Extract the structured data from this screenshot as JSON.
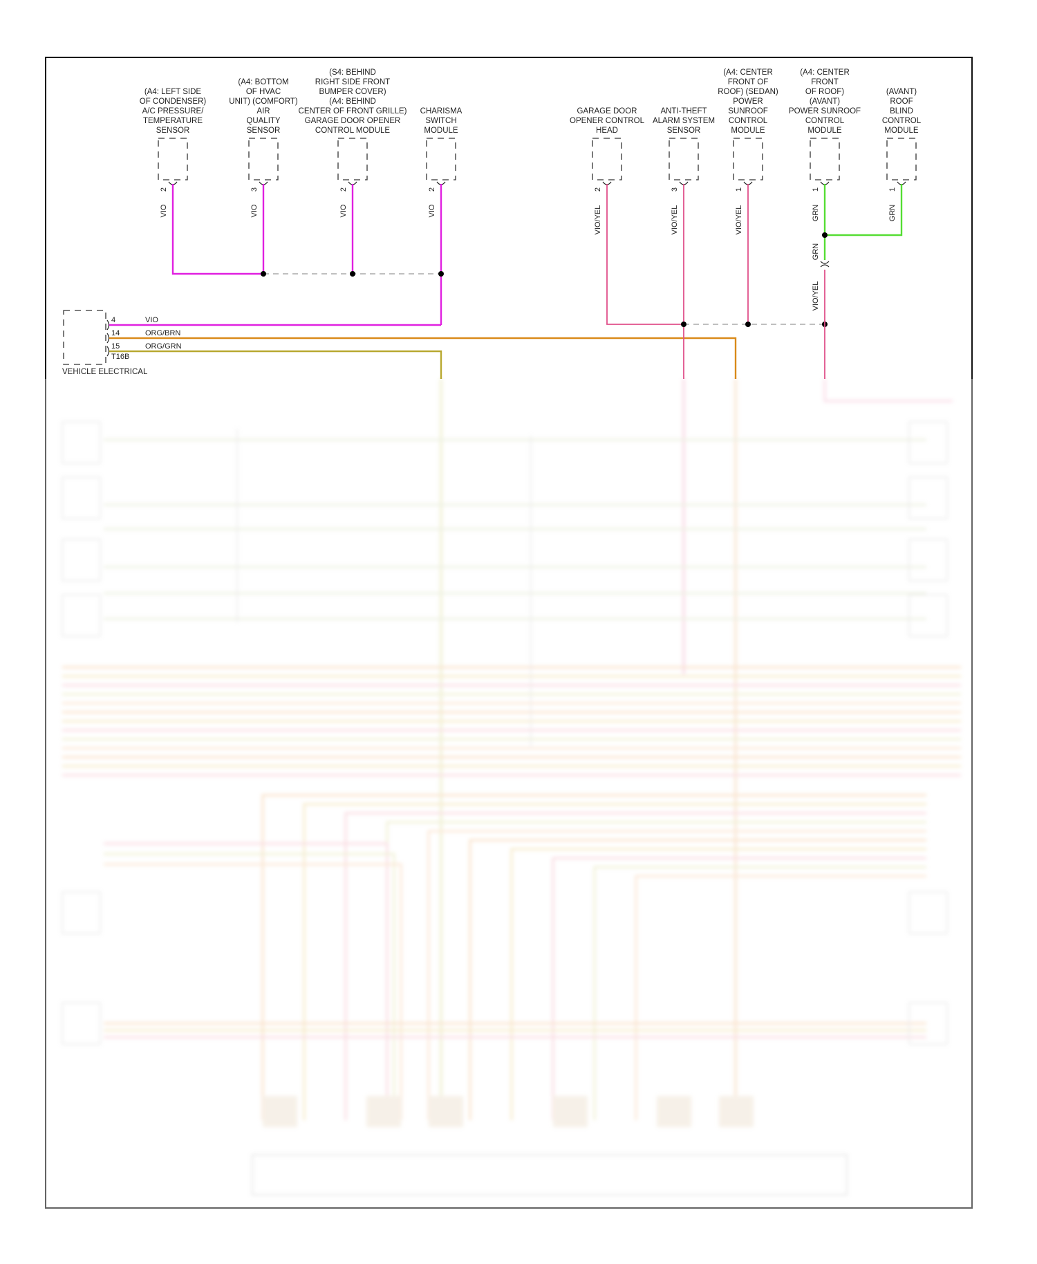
{
  "colors": {
    "vio": "#e020e0",
    "vio_yel": "#e0508a",
    "org_brn": "#d98a1a",
    "org_grn": "#b8a830",
    "grn": "#55dd33",
    "frame": "#111111"
  },
  "modules": [
    {
      "id": "ac-pressure-sensor",
      "lines": [
        "(A4: LEFT SIDE",
        "OF CONDENSER)",
        "A/C PRESSURE/",
        "TEMPERATURE",
        "SENSOR"
      ],
      "pin": "2",
      "wire": "VIO"
    },
    {
      "id": "air-quality-sensor",
      "lines": [
        "(A4: BOTTOM",
        "OF HVAC",
        "UNIT) (COMFORT)",
        "AIR",
        "QUALITY",
        "SENSOR"
      ],
      "pin": "3",
      "wire": "VIO"
    },
    {
      "id": "garage-door-opener-module",
      "lines": [
        "(S4: BEHIND",
        "RIGHT SIDE FRONT",
        "BUMPER COVER)",
        "(A4: BEHIND",
        "CENTER OF FRONT GRILLE)",
        "GARAGE DOOR OPENER",
        "CONTROL MODULE"
      ],
      "pin": "2",
      "wire": "VIO"
    },
    {
      "id": "charisma-switch-module",
      "lines": [
        "CHARISMA",
        "SWITCH",
        "MODULE"
      ],
      "pin": "2",
      "wire": "VIO"
    },
    {
      "id": "garage-door-control-head",
      "lines": [
        "GARAGE DOOR",
        "OPENER CONTROL",
        "HEAD"
      ],
      "pin": "2",
      "wire": "VIO/YEL"
    },
    {
      "id": "anti-theft-sensor",
      "lines": [
        "ANTI-THEFT",
        "ALARM SYSTEM",
        "SENSOR"
      ],
      "pin": "3",
      "wire": "VIO/YEL"
    },
    {
      "id": "sunroof-module-sedan",
      "lines": [
        "(A4: CENTER",
        "FRONT OF",
        "ROOF) (SEDAN)",
        "POWER",
        "SUNROOF",
        "CONTROL",
        "MODULE"
      ],
      "pin": "1",
      "wire": "VIO/YEL"
    },
    {
      "id": "sunroof-module-avant",
      "lines": [
        "(A4: CENTER",
        "FRONT",
        "OF ROOF)",
        "(AVANT)",
        "POWER SUNROOF",
        "CONTROL",
        "MODULE"
      ],
      "pin": "1",
      "wire": "GRN"
    },
    {
      "id": "roof-blind-module",
      "lines": [
        "(AVANT)",
        "ROOF",
        "BLIND",
        "CONTROL",
        "MODULE"
      ],
      "pin": "1",
      "wire": "GRN"
    }
  ],
  "splice_labels": {
    "upper": "GRN",
    "lower": "VIO/YEL"
  },
  "vehicle_electrical": {
    "label": "VEHICLE ELECTRICAL",
    "connector": "T16B",
    "pins": [
      {
        "pin": "4",
        "wire": "VIO"
      },
      {
        "pin": "14",
        "wire": "ORG/BRN"
      },
      {
        "pin": "15",
        "wire": "ORG/GRN"
      }
    ]
  }
}
